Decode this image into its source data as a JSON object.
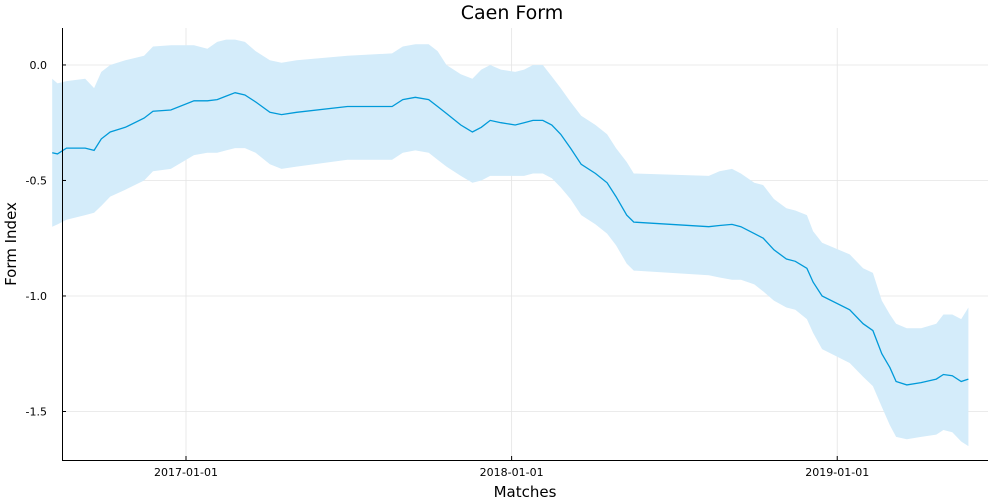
{
  "chart_data": {
    "type": "line",
    "title": "Caen Form",
    "xlabel": "Matches",
    "ylabel": "Form Index",
    "x_axis": "date",
    "xlim": [
      "2016-08-15",
      "2019-06-19"
    ],
    "ylim": [
      -1.71,
      0.16
    ],
    "grid": true,
    "legend": "none",
    "x_ticks": [
      {
        "value": "2017-01-01",
        "label": "2017-01-01"
      },
      {
        "value": "2018-01-01",
        "label": "2018-01-01"
      },
      {
        "value": "2019-01-01",
        "label": "2019-01-01"
      }
    ],
    "y_ticks": [
      {
        "value": 0.0,
        "label": "0.0"
      },
      {
        "value": -0.5,
        "label": "-0.5"
      },
      {
        "value": -1.0,
        "label": "-1.0"
      },
      {
        "value": -1.5,
        "label": "-1.5"
      }
    ],
    "colors": {
      "line": "#009ad9",
      "band": "#d4ecfa"
    },
    "series": [
      {
        "x": [
          "2016-08-04",
          "2016-08-10",
          "2016-08-20",
          "2016-09-10",
          "2016-09-20",
          "2016-09-28",
          "2016-10-08",
          "2016-10-25",
          "2016-11-15",
          "2016-11-25",
          "2016-12-15",
          "2017-01-10",
          "2017-01-25",
          "2017-02-05",
          "2017-02-15",
          "2017-02-25",
          "2017-03-08",
          "2017-03-20",
          "2017-04-05",
          "2017-04-18",
          "2017-05-05",
          "2017-07-01",
          "2017-08-20",
          "2017-09-01",
          "2017-09-15",
          "2017-09-30",
          "2017-10-10",
          "2017-10-20",
          "2017-11-05",
          "2017-11-18",
          "2017-11-28",
          "2017-12-08",
          "2017-12-20",
          "2018-01-05",
          "2018-01-15",
          "2018-01-25",
          "2018-02-05",
          "2018-02-15",
          "2018-02-25",
          "2018-03-08",
          "2018-03-20",
          "2018-04-05",
          "2018-04-18",
          "2018-04-28",
          "2018-05-10",
          "2018-05-18",
          "2018-08-10",
          "2018-08-22",
          "2018-09-05",
          "2018-09-15",
          "2018-09-30",
          "2018-10-10",
          "2018-10-22",
          "2018-11-05",
          "2018-11-15",
          "2018-11-28",
          "2018-12-05",
          "2018-12-15",
          "2019-01-15",
          "2019-01-30",
          "2019-02-10",
          "2019-02-20",
          "2019-03-01",
          "2019-03-08",
          "2019-03-20",
          "2019-04-05",
          "2019-04-22",
          "2019-04-30",
          "2019-05-10",
          "2019-05-20",
          "2019-05-28"
        ],
        "y": [
          -0.38,
          -0.385,
          -0.36,
          -0.36,
          -0.37,
          -0.32,
          -0.29,
          -0.27,
          -0.23,
          -0.2,
          -0.195,
          -0.155,
          -0.155,
          -0.15,
          -0.135,
          -0.12,
          -0.13,
          -0.16,
          -0.205,
          -0.215,
          -0.205,
          -0.18,
          -0.18,
          -0.15,
          -0.14,
          -0.15,
          -0.18,
          -0.21,
          -0.26,
          -0.29,
          -0.27,
          -0.24,
          -0.25,
          -0.26,
          -0.25,
          -0.24,
          -0.24,
          -0.26,
          -0.3,
          -0.36,
          -0.43,
          -0.47,
          -0.51,
          -0.57,
          -0.65,
          -0.68,
          -0.7,
          -0.695,
          -0.69,
          -0.7,
          -0.73,
          -0.75,
          -0.8,
          -0.84,
          -0.85,
          -0.88,
          -0.94,
          -1.0,
          -1.06,
          -1.12,
          -1.15,
          -1.25,
          -1.31,
          -1.37,
          -1.385,
          -1.375,
          -1.36,
          -1.34,
          -1.345,
          -1.37,
          -1.36
        ],
        "upper": [
          -0.06,
          -0.08,
          -0.07,
          -0.06,
          -0.1,
          -0.03,
          0.0,
          0.02,
          0.04,
          0.08,
          0.085,
          0.085,
          0.07,
          0.1,
          0.11,
          0.11,
          0.1,
          0.06,
          0.02,
          0.01,
          0.02,
          0.04,
          0.05,
          0.08,
          0.09,
          0.09,
          0.06,
          0.0,
          -0.04,
          -0.06,
          -0.02,
          0.0,
          -0.02,
          -0.03,
          -0.02,
          0.0,
          0.0,
          -0.05,
          -0.1,
          -0.16,
          -0.22,
          -0.26,
          -0.3,
          -0.36,
          -0.42,
          -0.47,
          -0.48,
          -0.46,
          -0.45,
          -0.47,
          -0.51,
          -0.52,
          -0.58,
          -0.62,
          -0.63,
          -0.65,
          -0.72,
          -0.77,
          -0.82,
          -0.88,
          -0.9,
          -1.02,
          -1.08,
          -1.12,
          -1.14,
          -1.14,
          -1.12,
          -1.08,
          -1.08,
          -1.1,
          -1.05
        ],
        "lower": [
          -0.7,
          -0.69,
          -0.67,
          -0.65,
          -0.64,
          -0.61,
          -0.57,
          -0.54,
          -0.5,
          -0.46,
          -0.45,
          -0.39,
          -0.38,
          -0.38,
          -0.37,
          -0.36,
          -0.36,
          -0.38,
          -0.43,
          -0.45,
          -0.44,
          -0.41,
          -0.41,
          -0.38,
          -0.37,
          -0.38,
          -0.41,
          -0.44,
          -0.48,
          -0.51,
          -0.5,
          -0.48,
          -0.48,
          -0.48,
          -0.48,
          -0.47,
          -0.47,
          -0.49,
          -0.53,
          -0.58,
          -0.65,
          -0.69,
          -0.73,
          -0.78,
          -0.86,
          -0.89,
          -0.91,
          -0.92,
          -0.93,
          -0.93,
          -0.95,
          -0.98,
          -1.02,
          -1.05,
          -1.06,
          -1.1,
          -1.16,
          -1.23,
          -1.29,
          -1.35,
          -1.39,
          -1.48,
          -1.56,
          -1.61,
          -1.62,
          -1.61,
          -1.6,
          -1.58,
          -1.59,
          -1.63,
          -1.65
        ]
      }
    ]
  }
}
